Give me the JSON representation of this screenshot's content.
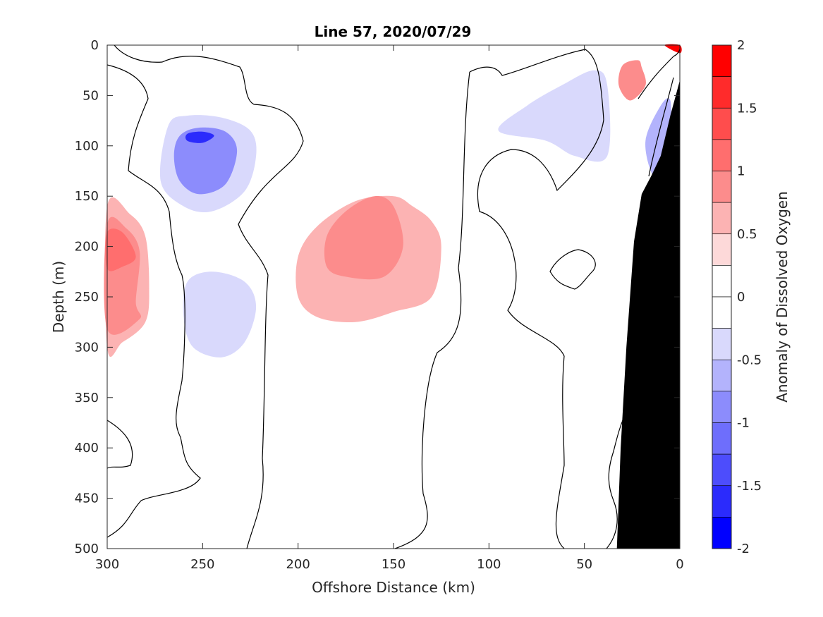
{
  "chart_data": {
    "type": "contour",
    "title": "Line 57, 2020/07/29",
    "xlabel": "Offshore Distance (km)",
    "ylabel": "Depth (m)",
    "colorbar_label": "Anomaly of Dissolved Oxygen",
    "xlim": [
      300,
      0
    ],
    "ylim": [
      0,
      500
    ],
    "y_reversed": true,
    "x_reversed": true,
    "xticks": [
      300,
      250,
      200,
      150,
      100,
      50,
      0
    ],
    "yticks": [
      0,
      50,
      100,
      150,
      200,
      250,
      300,
      350,
      400,
      450,
      500
    ],
    "colorbar_ticks": [
      2,
      1.5,
      1,
      0.5,
      0,
      -0.5,
      -1,
      -1.5,
      -2
    ],
    "colorbar_levels": [
      {
        "from": 1.75,
        "to": 2.0,
        "color": "#ff0000"
      },
      {
        "from": 1.5,
        "to": 1.75,
        "color": "#ff2b2b"
      },
      {
        "from": 1.25,
        "to": 1.5,
        "color": "#ff4d4d"
      },
      {
        "from": 1.0,
        "to": 1.25,
        "color": "#ff6e6e"
      },
      {
        "from": 0.75,
        "to": 1.0,
        "color": "#fc8c8c"
      },
      {
        "from": 0.5,
        "to": 0.75,
        "color": "#fcb3b3"
      },
      {
        "from": 0.25,
        "to": 0.5,
        "color": "#fdd9d9"
      },
      {
        "from": 0.0,
        "to": 0.25,
        "color": "#ffffff"
      },
      {
        "from": -0.25,
        "to": 0.0,
        "color": "#ffffff"
      },
      {
        "from": -0.5,
        "to": -0.25,
        "color": "#d9d9fc"
      },
      {
        "from": -0.75,
        "to": -0.5,
        "color": "#b3b3fc"
      },
      {
        "from": -1.0,
        "to": -0.75,
        "color": "#8c8cfc"
      },
      {
        "from": -1.25,
        "to": -1.0,
        "color": "#6e6efc"
      },
      {
        "from": -1.5,
        "to": -1.25,
        "color": "#4d4dfc"
      },
      {
        "from": -1.75,
        "to": -1.5,
        "color": "#2b2bfc"
      },
      {
        "from": -2.0,
        "to": -1.75,
        "color": "#0000ff"
      }
    ],
    "zero_contour_color": "#000000",
    "bathymetry_color": "#000000",
    "bathymetry": [
      [
        0,
        35
      ],
      [
        5,
        70
      ],
      [
        10,
        110
      ],
      [
        15,
        130
      ],
      [
        20,
        148
      ],
      [
        24,
        195
      ],
      [
        28,
        300
      ],
      [
        31,
        400
      ],
      [
        33,
        500
      ]
    ],
    "anomaly_regions": [
      {
        "name": "positive-core-offshore",
        "level": 0.5,
        "polygon": [
          [
            300,
            160
          ],
          [
            288,
            168
          ],
          [
            280,
            190
          ],
          [
            278,
            240
          ],
          [
            280,
            275
          ],
          [
            292,
            295
          ],
          [
            300,
            300
          ]
        ]
      },
      {
        "name": "positive-core-offshore-inner",
        "level": 0.75,
        "polygon": [
          [
            300,
            178
          ],
          [
            290,
            182
          ],
          [
            283,
            205
          ],
          [
            285,
            255
          ],
          [
            283,
            272
          ],
          [
            300,
            282
          ]
        ]
      },
      {
        "name": "positive-core-offshore-peak",
        "level": 1.0,
        "polygon": [
          [
            300,
            186
          ],
          [
            292,
            186
          ],
          [
            285,
            210
          ],
          [
            292,
            220
          ],
          [
            300,
            222
          ]
        ]
      },
      {
        "name": "positive-band-central",
        "level": 0.5,
        "polygon": [
          [
            170,
            155
          ],
          [
            150,
            150
          ],
          [
            140,
            160
          ],
          [
            130,
            175
          ],
          [
            125,
            200
          ],
          [
            130,
            250
          ],
          [
            150,
            265
          ],
          [
            170,
            275
          ],
          [
            190,
            270
          ],
          [
            200,
            250
          ],
          [
            200,
            210
          ],
          [
            190,
            180
          ]
        ]
      },
      {
        "name": "positive-core-central",
        "level": 0.75,
        "polygon": [
          [
            160,
            150
          ],
          [
            150,
            160
          ],
          [
            145,
            200
          ],
          [
            155,
            230
          ],
          [
            175,
            230
          ],
          [
            185,
            220
          ],
          [
            185,
            190
          ],
          [
            175,
            165
          ]
        ]
      },
      {
        "name": "positive-nearshore",
        "level": 0.75,
        "polygon": [
          [
            22,
            15
          ],
          [
            30,
            20
          ],
          [
            32,
            40
          ],
          [
            26,
            55
          ],
          [
            18,
            40
          ],
          [
            20,
            22
          ]
        ]
      },
      {
        "name": "positive-coast-surface",
        "level": 1.75,
        "polygon": [
          [
            0,
            0
          ],
          [
            8,
            0
          ],
          [
            0,
            8
          ]
        ]
      },
      {
        "name": "negative-core-subsurface",
        "level": -0.5,
        "polygon": [
          [
            268,
            80
          ],
          [
            258,
            70
          ],
          [
            240,
            72
          ],
          [
            225,
            85
          ],
          [
            222,
            110
          ],
          [
            228,
            145
          ],
          [
            245,
            165
          ],
          [
            260,
            160
          ],
          [
            272,
            135
          ]
        ]
      },
      {
        "name": "negative-core-inner",
        "level": -1.0,
        "polygon": [
          [
            262,
            90
          ],
          [
            252,
            82
          ],
          [
            238,
            86
          ],
          [
            232,
            105
          ],
          [
            238,
            138
          ],
          [
            252,
            148
          ],
          [
            262,
            135
          ],
          [
            265,
            110
          ]
        ]
      },
      {
        "name": "negative-core-peak",
        "level": -1.75,
        "polygon": [
          [
            258,
            88
          ],
          [
            250,
            86
          ],
          [
            244,
            90
          ],
          [
            250,
            97
          ],
          [
            258,
            95
          ]
        ]
      },
      {
        "name": "negative-deep",
        "level": -0.5,
        "polygon": [
          [
            258,
            235
          ],
          [
            245,
            225
          ],
          [
            228,
            235
          ],
          [
            222,
            260
          ],
          [
            228,
            295
          ],
          [
            240,
            310
          ],
          [
            255,
            300
          ],
          [
            260,
            270
          ]
        ]
      },
      {
        "name": "negative-offshore-upper",
        "level": -0.5,
        "polygon": [
          [
            95,
            85
          ],
          [
            80,
            60
          ],
          [
            62,
            40
          ],
          [
            45,
            25
          ],
          [
            38,
            40
          ],
          [
            38,
            110
          ],
          [
            55,
            110
          ],
          [
            70,
            95
          ]
        ]
      },
      {
        "name": "negative-coast",
        "level": -0.75,
        "polygon": [
          [
            5,
            55
          ],
          [
            10,
            60
          ],
          [
            18,
            95
          ],
          [
            14,
            130
          ],
          [
            8,
            125
          ],
          [
            5,
            90
          ]
        ]
      }
    ]
  }
}
